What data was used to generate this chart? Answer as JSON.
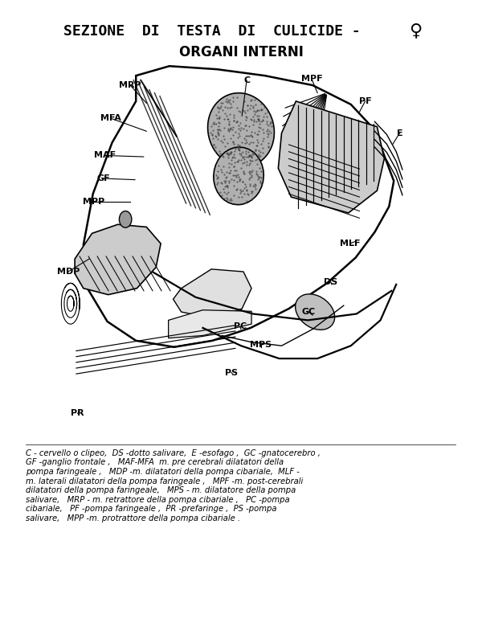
{
  "title_line1": "SEZIONE  DI  TESTA  DI  CULICIDE -",
  "title_line2": "ORGANI INTERNI",
  "bg_color": "#ffffff",
  "caption": "C - cervello o clipeo,  DS -dotto salivare,  E -esofago ,  GC -gnatocerebro ,\nGF -ganglio frontale ,   MAF-MFA  m. pre cerebrali dilatatori della\npompa faringeale ,   MDP -m. dilatatori della pompa cibariale,  MLF -\nm. laterali dilatatori della pompa faringeale ,   MPF -m. post-cerebrali\ndilatatori della pompa faringeale,   MPS - m. dilatatore della pompa\nsalivare,   MRP - m. retrattore della pompa cibariale ,   PC -pompa\ncibariale,   PF -pompa faringeale ,  PR -prefaringe ,  PS -pompa\nsalivare,   MPP -m. protrattore della pompa cibariale ."
}
